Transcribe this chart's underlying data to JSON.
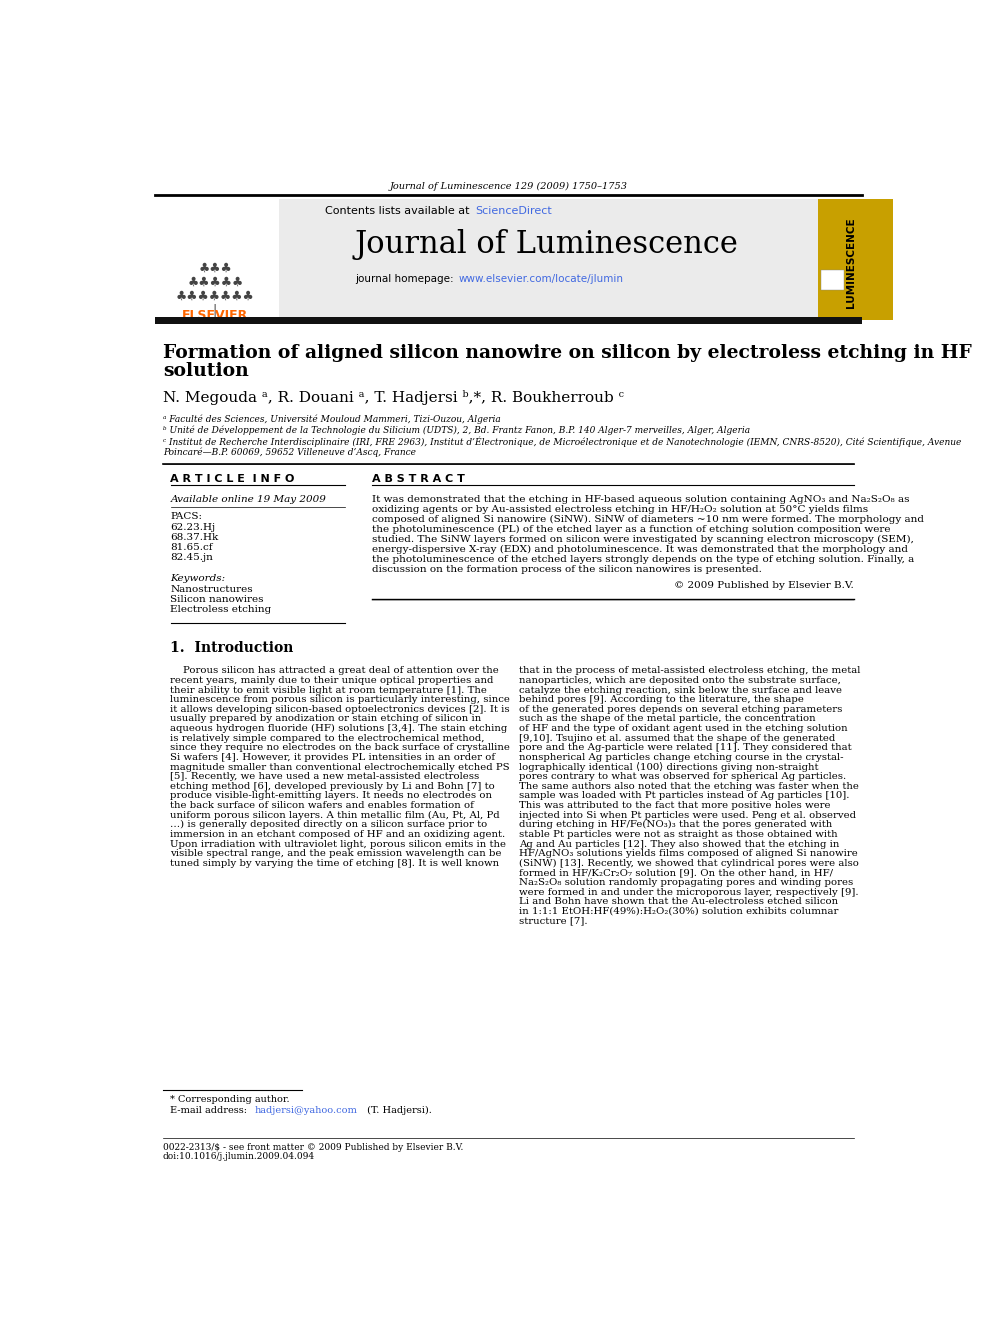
{
  "page_title": "Journal of Luminescence 129 (2009) 1750–1753",
  "journal_name": "Journal of Luminescence",
  "contents_line": "Contents lists available at ScienceDirect",
  "sciencedirect_color": "#4169E1",
  "homepage_color": "#4169E1",
  "article_title_line1": "Formation of aligned silicon nanowire on silicon by electroless etching in HF",
  "article_title_line2": "solution",
  "authors": "N. Megouda ᵃ, R. Douani ᵃ, T. Hadjersi ᵇ,*, R. Boukherroub ᶜ",
  "affil_a": "ᵃ Faculté des Sciences, Université Mouloud Mammeri, Tizi-Ouzou, Algeria",
  "affil_b": "ᵇ Unité de Développement de la Technologie du Silicium (UDTS), 2, Bd. Frantz Fanon, B.P. 140 Alger-7 merveilles, Alger, Algeria",
  "affil_c1": "ᶜ Institut de Recherche Interdisciplinaire (IRI, FRE 2963), Institut d’Électronique, de Microélectronique et de Nanotechnologie (IEMN, CNRS-8520), Cité Scientifique, Avenue",
  "affil_c2": "Poincaré—B.P. 60069, 59652 Villeneuve d’Ascq, France",
  "article_info_header": "A R T I C L E  I N F O",
  "abstract_header": "A B S T R A C T",
  "available_online": "Available online 19 May 2009",
  "pacs_label": "PACS:",
  "pacs_values": [
    "62.23.Hj",
    "68.37.Hk",
    "81.65.cf",
    "82.45.jn"
  ],
  "keywords_label": "Keywords:",
  "keywords": [
    "Nanostructures",
    "Silicon nanowires",
    "Electroless etching"
  ],
  "abstract_lines": [
    "It was demonstrated that the etching in HF-based aqueous solution containing AgNO₃ and Na₂S₂O₈ as",
    "oxidizing agents or by Au-assisted electroless etching in HF/H₂O₂ solution at 50°C yields films",
    "composed of aligned Si nanowire (SiNW). SiNW of diameters ~10 nm were formed. The morphology and",
    "the photoluminescence (PL) of the etched layer as a function of etching solution composition were",
    "studied. The SiNW layers formed on silicon were investigated by scanning electron microscopy (SEM),",
    "energy-dispersive X-ray (EDX) and photoluminescence. It was demonstrated that the morphology and",
    "the photoluminescence of the etched layers strongly depends on the type of etching solution. Finally, a",
    "discussion on the formation process of the silicon nanowires is presented."
  ],
  "copyright_line": "© 2009 Published by Elsevier B.V.",
  "intro_header": "1.  Introduction",
  "intro_col1_lines": [
    "    Porous silicon has attracted a great deal of attention over the",
    "recent years, mainly due to their unique optical properties and",
    "their ability to emit visible light at room temperature [1]. The",
    "luminescence from porous silicon is particularly interesting, since",
    "it allows developing silicon-based optoelectronics devices [2]. It is",
    "usually prepared by anodization or stain etching of silicon in",
    "aqueous hydrogen fluoride (HF) solutions [3,4]. The stain etching",
    "is relatively simple compared to the electrochemical method,",
    "since they require no electrodes on the back surface of crystalline",
    "Si wafers [4]. However, it provides PL intensities in an order of",
    "magnitude smaller than conventional electrochemically etched PS",
    "[5]. Recently, we have used a new metal-assisted electroless",
    "etching method [6], developed previously by Li and Bohn [7] to",
    "produce visible-light-emitting layers. It needs no electrodes on",
    "the back surface of silicon wafers and enables formation of",
    "uniform porous silicon layers. A thin metallic film (Au, Pt, Al, Pd",
    "…) is generally deposited directly on a silicon surface prior to",
    "immersion in an etchant composed of HF and an oxidizing agent.",
    "Upon irradiation with ultraviolet light, porous silicon emits in the",
    "visible spectral range, and the peak emission wavelength can be",
    "tuned simply by varying the time of etching [8]. It is well known"
  ],
  "intro_col2_lines": [
    "that in the process of metal-assisted electroless etching, the metal",
    "nanoparticles, which are deposited onto the substrate surface,",
    "catalyze the etching reaction, sink below the surface and leave",
    "behind pores [9]. According to the literature, the shape",
    "of the generated pores depends on several etching parameters",
    "such as the shape of the metal particle, the concentration",
    "of HF and the type of oxidant agent used in the etching solution",
    "[9,10]. Tsujino et al. assumed that the shape of the generated",
    "pore and the Ag-particle were related [11]. They considered that",
    "nonspherical Ag particles change etching course in the crystal-",
    "lographically identical ⟨100⟩ directions giving non-straight",
    "pores contrary to what was observed for spherical Ag particles.",
    "The same authors also noted that the etching was faster when the",
    "sample was loaded with Pt particles instead of Ag particles [10].",
    "This was attributed to the fact that more positive holes were",
    "injected into Si when Pt particles were used. Peng et al. observed",
    "during etching in HF/Fe(NO₃)₃ that the pores generated with",
    "stable Pt particles were not as straight as those obtained with",
    "Ag and Au particles [12]. They also showed that the etching in",
    "HF/AgNO₃ solutions yields films composed of aligned Si nanowire",
    "(SiNW) [13]. Recently, we showed that cylindrical pores were also",
    "formed in HF/K₂Cr₂O₇ solution [9]. On the other hand, in HF/",
    "Na₂S₂O₈ solution randomly propagating pores and winding pores",
    "were formed in and under the microporous layer, respectively [9].",
    "Li and Bohn have shown that the Au-electroless etched silicon",
    "in 1:1:1 EtOH:HF(49%):H₂O₂(30%) solution exhibits columnar",
    "structure [7]."
  ],
  "footnote_line1": "* Corresponding author.",
  "footnote_line2": "E-mail address: hadjersi@yahoo.com (T. Hadjersi).",
  "email_color": "#4169E1",
  "copyright_bottom": "0022-2313/$ - see front matter © 2009 Published by Elsevier B.V.",
  "doi_line": "doi:10.1016/j.jlumin.2009.04.094",
  "bg_header_color": "#EBEBEB",
  "elsevier_orange": "#FF6600",
  "journal_cover_bg": "#C8A000",
  "black_bar_color": "#111111"
}
